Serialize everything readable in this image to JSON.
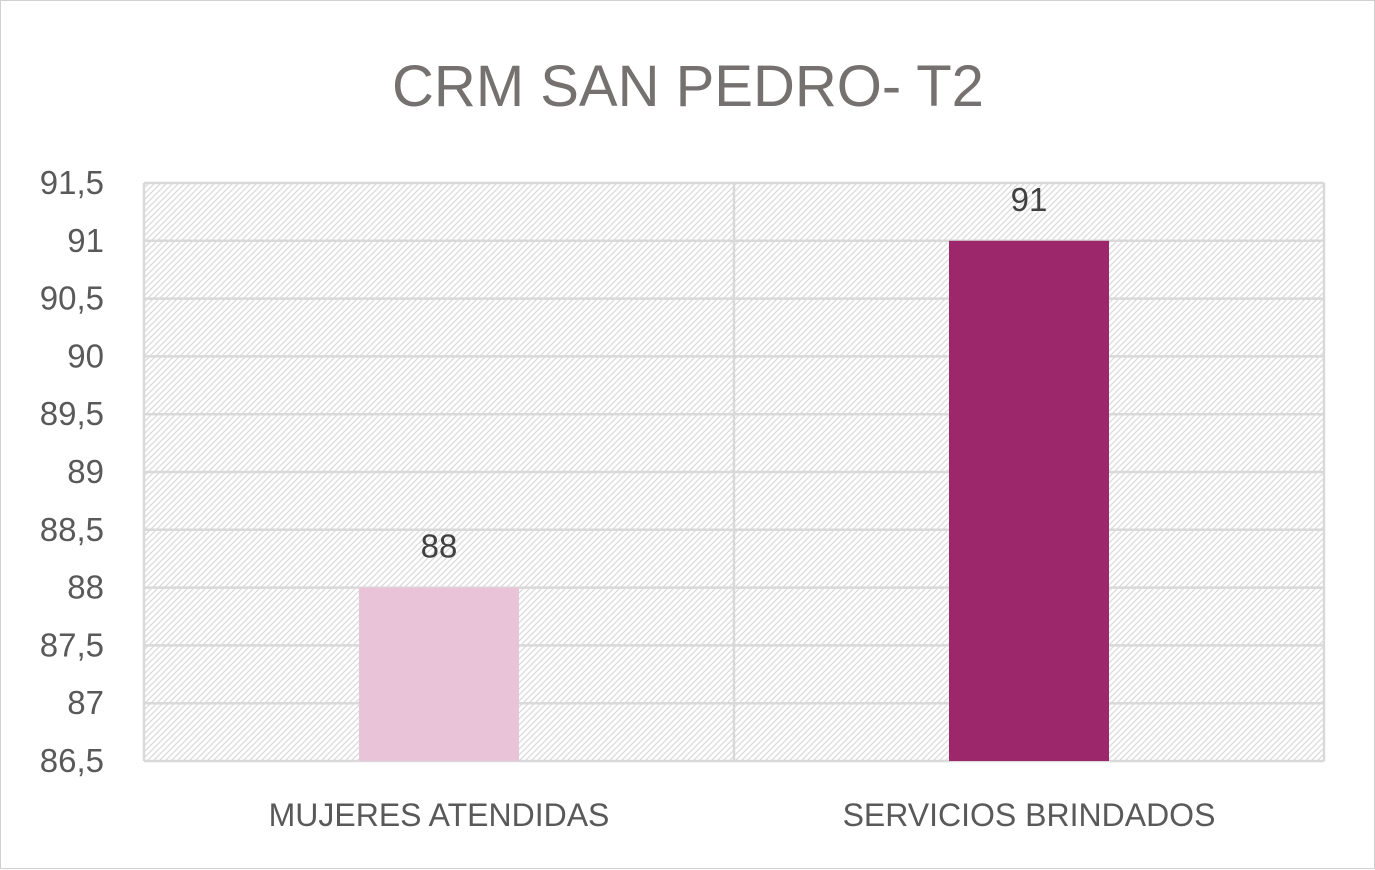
{
  "chart_data": {
    "type": "bar",
    "title": "CRM SAN PEDRO- T2",
    "categories": [
      "MUJERES ATENDIDAS",
      "SERVICIOS BRINDADOS"
    ],
    "values": [
      88,
      91
    ],
    "data_labels": [
      "88",
      "91"
    ],
    "bar_colors": [
      "#E9C4D8",
      "#9C276A"
    ],
    "ylim": [
      86.5,
      91.5
    ],
    "yticks": [
      86.5,
      87,
      87.5,
      88,
      88.5,
      89,
      89.5,
      90,
      90.5,
      91,
      91.5
    ],
    "ytick_labels": [
      "86,5",
      "87",
      "87,5",
      "88",
      "88,5",
      "89",
      "89,5",
      "90",
      "90,5",
      "91",
      "91,5"
    ],
    "xlabel": "",
    "ylabel": "",
    "grid": true,
    "plot_background": "hatched light gray",
    "legend": "none"
  }
}
